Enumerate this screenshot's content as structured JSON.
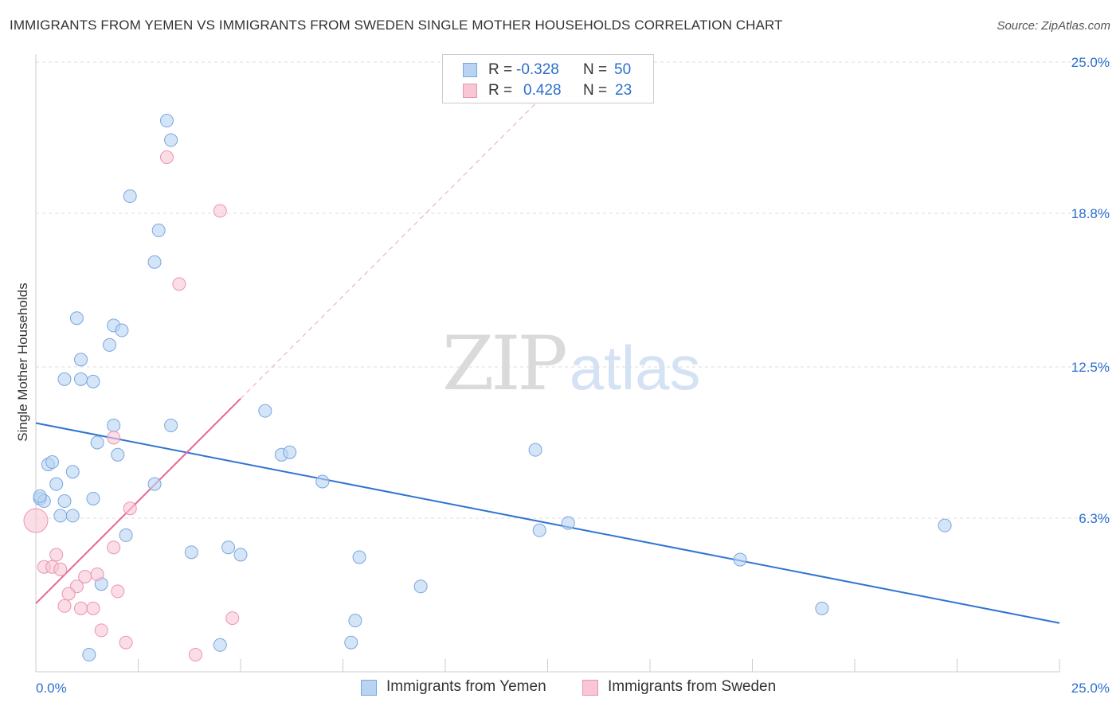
{
  "header": {
    "title": "IMMIGRANTS FROM YEMEN VS IMMIGRANTS FROM SWEDEN SINGLE MOTHER HOUSEHOLDS CORRELATION CHART",
    "source": "Source: ZipAtlas.com"
  },
  "watermark": {
    "zip": "ZIP",
    "atlas": "atlas"
  },
  "stats": {
    "yemen": {
      "r_label": "R =",
      "r_value": "-0.328",
      "n_label": "N =",
      "n_value": "50"
    },
    "sweden": {
      "r_label": "R =",
      "r_value": "0.428",
      "n_label": "N =",
      "n_value": "23"
    }
  },
  "legend": {
    "yemen": "Immigrants from Yemen",
    "sweden": "Immigrants from Sweden"
  },
  "colors": {
    "yemen_fill": "#b9d3f3",
    "yemen_stroke": "#7aa6de",
    "yemen_line": "#2f74d0",
    "sweden_fill": "#f8c6d5",
    "sweden_stroke": "#ec93b0",
    "sweden_line": "#e8698f",
    "tick_label": "#2c6fcf",
    "grid": "#dddddd"
  },
  "chart_data": {
    "type": "scatter",
    "title": "IMMIGRANTS FROM YEMEN VS IMMIGRANTS FROM SWEDEN SINGLE MOTHER HOUSEHOLDS CORRELATION CHART",
    "xlabel": "",
    "ylabel": "Single Mother Households",
    "xlim": [
      0,
      25
    ],
    "ylim": [
      0,
      25
    ],
    "x_tick_labels": [
      "0.0%",
      "25.0%"
    ],
    "y_ticks": [
      6.3,
      12.5,
      18.8,
      25.0
    ],
    "y_tick_labels": [
      "6.3%",
      "12.5%",
      "18.8%",
      "25.0%"
    ],
    "series": [
      {
        "name": "Immigrants from Yemen",
        "points": [
          [
            3.2,
            22.6
          ],
          [
            3.3,
            21.8
          ],
          [
            2.3,
            19.5
          ],
          [
            3.0,
            18.1
          ],
          [
            2.9,
            16.8
          ],
          [
            1.0,
            14.5
          ],
          [
            1.9,
            14.2
          ],
          [
            2.1,
            14.0
          ],
          [
            1.8,
            13.4
          ],
          [
            1.1,
            12.8
          ],
          [
            0.7,
            12.0
          ],
          [
            1.1,
            12.0
          ],
          [
            1.4,
            11.9
          ],
          [
            5.6,
            10.7
          ],
          [
            1.9,
            10.1
          ],
          [
            3.3,
            10.1
          ],
          [
            1.5,
            9.4
          ],
          [
            2.0,
            8.9
          ],
          [
            6.0,
            8.9
          ],
          [
            6.2,
            9.0
          ],
          [
            12.2,
            9.1
          ],
          [
            0.3,
            8.5
          ],
          [
            0.4,
            8.6
          ],
          [
            0.9,
            8.2
          ],
          [
            0.5,
            7.7
          ],
          [
            2.9,
            7.7
          ],
          [
            7.0,
            7.8
          ],
          [
            0.1,
            7.1
          ],
          [
            0.2,
            7.0
          ],
          [
            0.7,
            7.0
          ],
          [
            1.4,
            7.1
          ],
          [
            0.6,
            6.4
          ],
          [
            0.9,
            6.4
          ],
          [
            13.0,
            6.1
          ],
          [
            12.3,
            5.8
          ],
          [
            22.2,
            6.0
          ],
          [
            2.2,
            5.6
          ],
          [
            3.8,
            4.9
          ],
          [
            4.7,
            5.1
          ],
          [
            5.0,
            4.8
          ],
          [
            7.9,
            4.7
          ],
          [
            17.2,
            4.6
          ],
          [
            1.6,
            3.6
          ],
          [
            9.4,
            3.5
          ],
          [
            19.2,
            2.6
          ],
          [
            7.8,
            2.1
          ],
          [
            7.7,
            1.2
          ],
          [
            4.5,
            1.1
          ],
          [
            1.3,
            0.7
          ],
          [
            0.1,
            7.2
          ]
        ]
      },
      {
        "name": "Immigrants from Sweden",
        "points": [
          [
            3.2,
            21.1
          ],
          [
            4.5,
            18.9
          ],
          [
            3.5,
            15.9
          ],
          [
            1.9,
            9.6
          ],
          [
            2.3,
            6.7
          ],
          [
            0.0,
            6.2
          ],
          [
            0.5,
            4.8
          ],
          [
            0.2,
            4.3
          ],
          [
            0.4,
            4.3
          ],
          [
            0.6,
            4.2
          ],
          [
            1.2,
            3.9
          ],
          [
            1.5,
            4.0
          ],
          [
            1.9,
            5.1
          ],
          [
            1.0,
            3.5
          ],
          [
            0.8,
            3.2
          ],
          [
            2.0,
            3.3
          ],
          [
            0.7,
            2.7
          ],
          [
            1.1,
            2.6
          ],
          [
            1.4,
            2.6
          ],
          [
            4.8,
            2.2
          ],
          [
            1.6,
            1.7
          ],
          [
            2.2,
            1.2
          ],
          [
            3.9,
            0.7
          ]
        ]
      }
    ],
    "trendlines": [
      {
        "series": "Immigrants from Yemen",
        "x": [
          0,
          25
        ],
        "y": [
          10.2,
          2.0
        ]
      },
      {
        "series": "Immigrants from Sweden",
        "x": [
          0,
          5.0
        ],
        "y": [
          2.8,
          11.2
        ],
        "dashed_extension_to": [
          24.2,
          42.0
        ]
      }
    ]
  }
}
